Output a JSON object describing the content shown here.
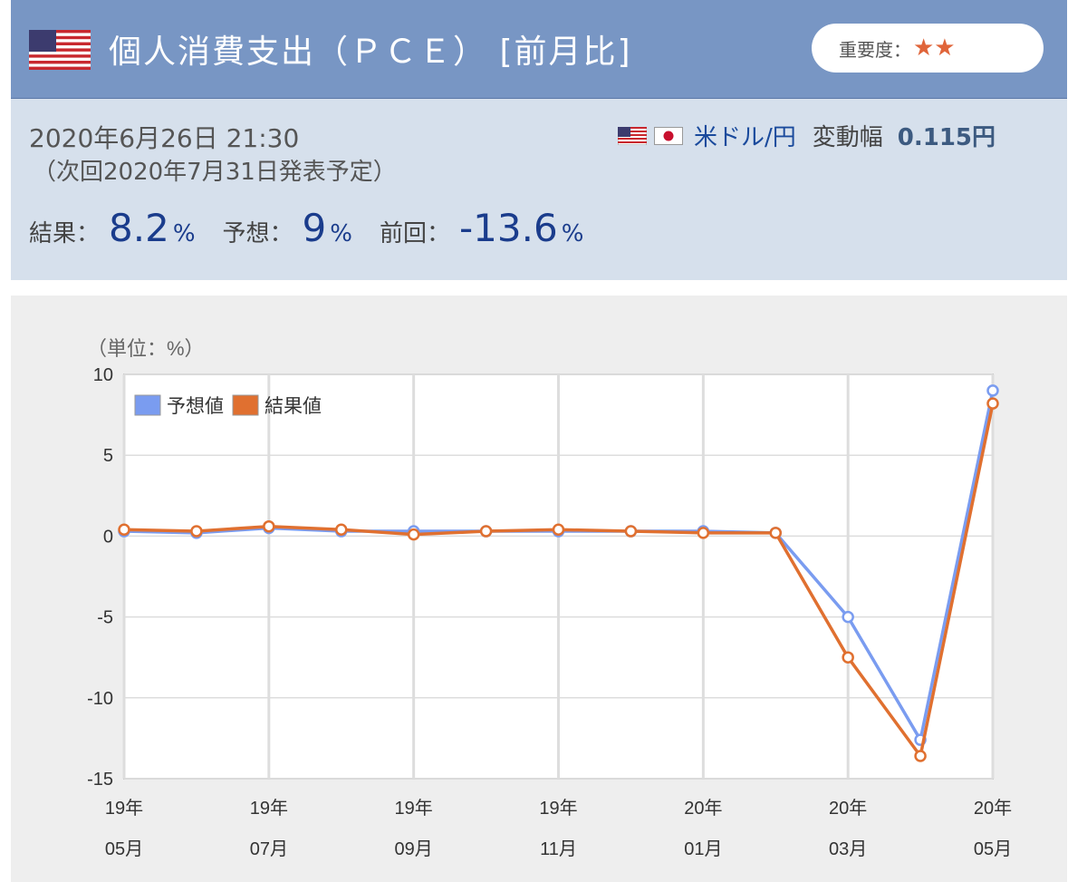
{
  "header": {
    "title": "個人消費支出（ＰＣＥ） [前月比]",
    "importance_label": "重要度：",
    "importance_stars": "★★",
    "star_color": "#e0653a"
  },
  "info": {
    "date": "2020年6月26日 21:30",
    "next_release": "（次回2020年7月31日発表予定）",
    "currency_pair": "米ドル/円",
    "range_label": "変動幅",
    "range_value": "0.115円",
    "result_label": "結果：",
    "result_value": "8.2",
    "forecast_label": "予想：",
    "forecast_value": "9",
    "previous_label": "前回：",
    "previous_value": "-13.6",
    "unit": "%"
  },
  "chart_data": {
    "type": "line",
    "unit_label": "（単位：%）",
    "ylim": [
      -15,
      10
    ],
    "yticks": [
      10,
      5,
      0,
      -5,
      -10,
      -15
    ],
    "x": [
      "19年05月",
      "19年06月",
      "19年07月",
      "19年08月",
      "19年09月",
      "19年10月",
      "19年11月",
      "19年12月",
      "20年01月",
      "20年02月",
      "20年03月",
      "20年04月",
      "20年05月"
    ],
    "xtick_labels": [
      {
        "index": 0,
        "line1": "19年",
        "line2": "05月"
      },
      {
        "index": 2,
        "line1": "19年",
        "line2": "07月"
      },
      {
        "index": 4,
        "line1": "19年",
        "line2": "09月"
      },
      {
        "index": 6,
        "line1": "19年",
        "line2": "11月"
      },
      {
        "index": 8,
        "line1": "20年",
        "line2": "01月"
      },
      {
        "index": 10,
        "line1": "20年",
        "line2": "03月"
      },
      {
        "index": 12,
        "line1": "20年",
        "line2": "05月"
      }
    ],
    "series": [
      {
        "name": "予想値",
        "color": "#7a9cf0",
        "values": [
          0.3,
          0.2,
          0.5,
          0.3,
          0.3,
          0.3,
          0.3,
          0.3,
          0.3,
          0.2,
          -5.0,
          -12.6,
          9.0
        ]
      },
      {
        "name": "結果値",
        "color": "#e07030",
        "values": [
          0.4,
          0.3,
          0.6,
          0.4,
          0.1,
          0.3,
          0.4,
          0.3,
          0.2,
          0.2,
          -7.5,
          -13.6,
          8.2
        ]
      }
    ],
    "grid": true,
    "legend": "top-left"
  }
}
